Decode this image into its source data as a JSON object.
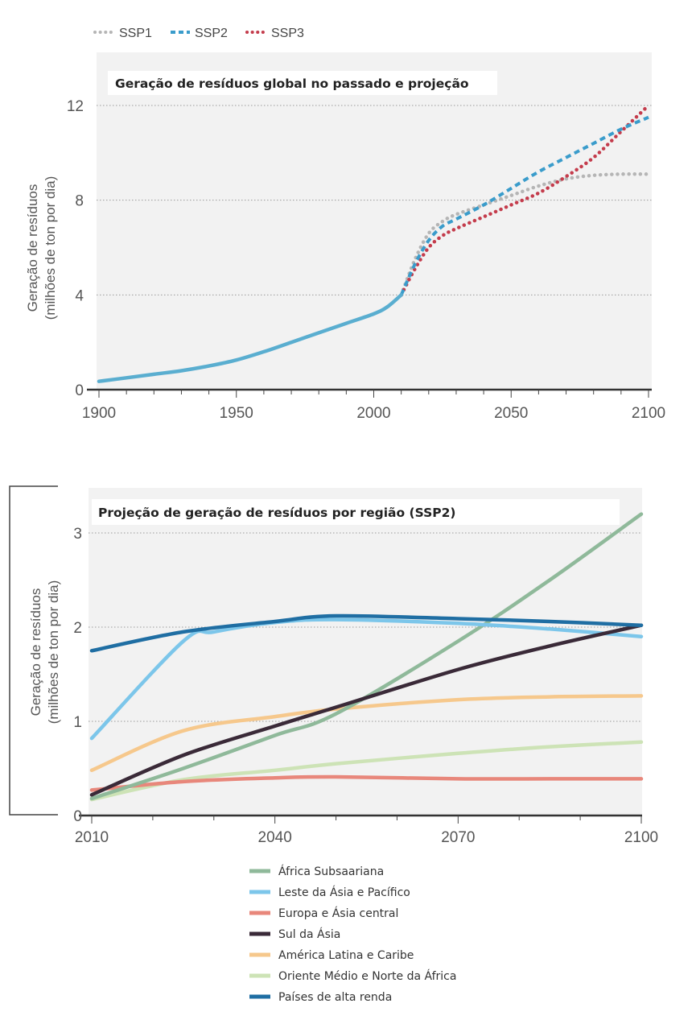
{
  "chart_data": [
    {
      "type": "line",
      "title": "Geração de resíduos global no passado e projeção",
      "ylabel_line1": "Geração de resíduos",
      "ylabel_line2": "(milhões de ton por dia)",
      "xlabel": "",
      "xlim": [
        1900,
        2100
      ],
      "ylim": [
        0,
        13.2
      ],
      "xticks": [
        1900,
        1950,
        2000,
        2050,
        2100
      ],
      "yticks": [
        0,
        4,
        8,
        12
      ],
      "grid": "horizontal dotted",
      "legend_position": "top-left",
      "series": [
        {
          "name": "",
          "style": "solid",
          "color": "#5aaed0",
          "x": [
            1900,
            1910,
            1920,
            1930,
            1940,
            1950,
            1960,
            1970,
            1980,
            1990,
            2000,
            2005,
            2010
          ],
          "y": [
            0.35,
            0.5,
            0.65,
            0.8,
            1.0,
            1.25,
            1.6,
            2.0,
            2.4,
            2.8,
            3.2,
            3.5,
            4.0
          ]
        },
        {
          "name": "SSP1",
          "style": "dotted",
          "color": "#b5b5b5",
          "x": [
            2010,
            2015,
            2020,
            2025,
            2030,
            2040,
            2050,
            2060,
            2070,
            2080,
            2090,
            2100
          ],
          "y": [
            4.0,
            5.5,
            6.6,
            7.1,
            7.4,
            7.8,
            8.2,
            8.6,
            8.9,
            9.05,
            9.1,
            9.1
          ]
        },
        {
          "name": "SSP2",
          "style": "dashed",
          "color": "#3a9ccb",
          "x": [
            2010,
            2015,
            2020,
            2025,
            2030,
            2040,
            2050,
            2060,
            2070,
            2080,
            2090,
            2100
          ],
          "y": [
            4.0,
            5.3,
            6.3,
            6.9,
            7.2,
            7.8,
            8.5,
            9.2,
            9.8,
            10.4,
            11.0,
            11.5
          ]
        },
        {
          "name": "SSP3",
          "style": "dotted",
          "color": "#c43c4c",
          "x": [
            2010,
            2015,
            2020,
            2025,
            2030,
            2040,
            2050,
            2060,
            2070,
            2080,
            2090,
            2100
          ],
          "y": [
            4.0,
            5.1,
            6.0,
            6.5,
            6.8,
            7.3,
            7.8,
            8.3,
            9.0,
            9.8,
            10.9,
            12.0
          ]
        }
      ]
    },
    {
      "type": "line",
      "title": "Projeção de geração de resíduos por região (SSP2)",
      "ylabel_line1": "Geração de resíduos",
      "ylabel_line2": "(milhões de ton por dia)",
      "xlabel": "",
      "xlim": [
        2010,
        2100
      ],
      "ylim": [
        0,
        3.4
      ],
      "xticks": [
        2010,
        2040,
        2070,
        2100
      ],
      "yticks": [
        0,
        1,
        2,
        3
      ],
      "grid": "horizontal dotted",
      "legend_position": "bottom-center",
      "series": [
        {
          "name": "África Subsaariana",
          "color": "#8fb99a",
          "x": [
            2010,
            2025,
            2040,
            2050,
            2070,
            2085,
            2100
          ],
          "y": [
            0.18,
            0.5,
            0.85,
            1.08,
            1.85,
            2.5,
            3.2
          ]
        },
        {
          "name": "Leste da Ásia e Pacífico",
          "color": "#7cc6ea",
          "x": [
            2010,
            2025,
            2030,
            2040,
            2050,
            2070,
            2085,
            2100
          ],
          "y": [
            0.82,
            1.85,
            1.95,
            2.05,
            2.08,
            2.04,
            1.98,
            1.9
          ]
        },
        {
          "name": "Europa e Ásia central",
          "color": "#e8877b",
          "x": [
            2010,
            2025,
            2040,
            2050,
            2070,
            2085,
            2100
          ],
          "y": [
            0.27,
            0.36,
            0.4,
            0.41,
            0.39,
            0.39,
            0.39
          ]
        },
        {
          "name": "Sul da Ásia",
          "color": "#3a2a38",
          "x": [
            2010,
            2025,
            2040,
            2050,
            2070,
            2085,
            2100
          ],
          "y": [
            0.22,
            0.64,
            0.95,
            1.15,
            1.55,
            1.8,
            2.02
          ]
        },
        {
          "name": "América Latina e Caribe",
          "color": "#f6c88c",
          "x": [
            2010,
            2025,
            2040,
            2050,
            2070,
            2085,
            2100
          ],
          "y": [
            0.48,
            0.9,
            1.05,
            1.13,
            1.23,
            1.26,
            1.27
          ]
        },
        {
          "name": "Oriente Médio e Norte da África",
          "color": "#cde3b6",
          "x": [
            2010,
            2025,
            2040,
            2050,
            2070,
            2085,
            2100
          ],
          "y": [
            0.17,
            0.38,
            0.48,
            0.55,
            0.66,
            0.73,
            0.78
          ]
        },
        {
          "name": "Países de alta renda",
          "color": "#1f6ea3",
          "x": [
            2010,
            2025,
            2040,
            2050,
            2070,
            2085,
            2100
          ],
          "y": [
            1.75,
            1.95,
            2.06,
            2.12,
            2.09,
            2.06,
            2.02
          ]
        }
      ]
    }
  ]
}
